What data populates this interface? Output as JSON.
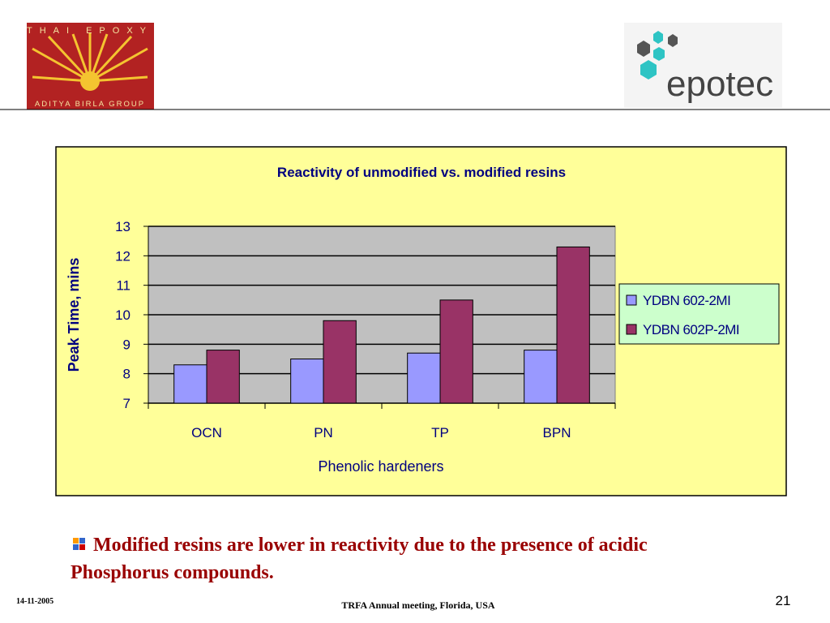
{
  "logos": {
    "left_top": "THAI EPOXY",
    "left_bottom": "ADITYA BIRLA GROUP",
    "right": "epotec"
  },
  "chart_data": {
    "type": "bar",
    "title": "Reactivity of unmodified vs. modified resins",
    "x_label": "Phenolic hardeners",
    "y_label": "Peak Time, mins",
    "categories": [
      "OCN",
      "PN",
      "TP",
      "BPN"
    ],
    "series": [
      {
        "name": "YDBN 602-2MI",
        "color": "#9999ff",
        "values": [
          8.3,
          8.5,
          8.7,
          8.8
        ]
      },
      {
        "name": "YDBN 602P-2MI",
        "color": "#993366",
        "values": [
          8.8,
          9.8,
          10.5,
          12.3
        ]
      }
    ],
    "ylim": [
      7,
      13
    ],
    "yticks": [
      7,
      8,
      9,
      10,
      11,
      12,
      13
    ],
    "grid": true,
    "legend": "right"
  },
  "bullet": [
    "Modified resins are lower in reactivity due to the presence of acidic",
    "Phosphorus compounds."
  ],
  "footer": {
    "date": "14-11-2005",
    "center": "TRFA Annual meeting, Florida, USA",
    "page": "21"
  }
}
